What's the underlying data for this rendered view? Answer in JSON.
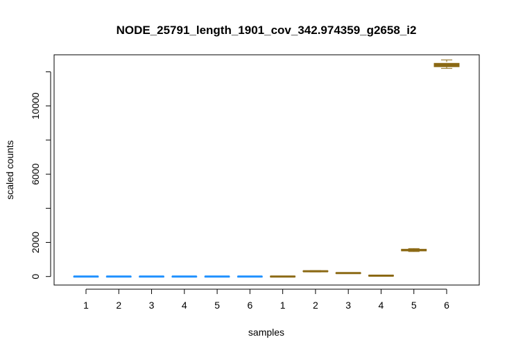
{
  "chart_data": {
    "type": "boxplot",
    "title": "NODE_25791_length_1901_cov_342.974359_g2658_i2",
    "xlabel": "samples",
    "ylabel": "scaled counts",
    "ylim": [
      -500,
      13000
    ],
    "y_ticks": [
      0,
      2000,
      6000,
      10000
    ],
    "y_minor_ticks": [
      4000,
      8000,
      12000
    ],
    "grid": false,
    "categories": [
      "1",
      "2",
      "3",
      "4",
      "5",
      "6",
      "1",
      "2",
      "3",
      "4",
      "5",
      "6"
    ],
    "series": [
      {
        "color": "#1E90FF",
        "boxes": [
          {
            "category": "1",
            "min": 0,
            "q1": 0,
            "median": 0,
            "q3": 0,
            "max": 0
          },
          {
            "category": "2",
            "min": 0,
            "q1": 0,
            "median": 0,
            "q3": 0,
            "max": 0
          },
          {
            "category": "3",
            "min": 0,
            "q1": 0,
            "median": 0,
            "q3": 0,
            "max": 0
          },
          {
            "category": "4",
            "min": 0,
            "q1": 0,
            "median": 0,
            "q3": 0,
            "max": 0
          },
          {
            "category": "5",
            "min": 0,
            "q1": 0,
            "median": 0,
            "q3": 0,
            "max": 0
          },
          {
            "category": "6",
            "min": 0,
            "q1": 0,
            "median": 0,
            "q3": 0,
            "max": 0
          }
        ]
      },
      {
        "color": "#8B6914",
        "boxes": [
          {
            "category": "1",
            "min": -30,
            "q1": -20,
            "median": 0,
            "q3": 20,
            "max": 30
          },
          {
            "category": "2",
            "min": 270,
            "q1": 290,
            "median": 310,
            "q3": 330,
            "max": 350
          },
          {
            "category": "3",
            "min": 170,
            "q1": 180,
            "median": 200,
            "q3": 220,
            "max": 230
          },
          {
            "category": "4",
            "min": 20,
            "q1": 30,
            "median": 50,
            "q3": 70,
            "max": 80
          },
          {
            "category": "5",
            "min": 1460,
            "q1": 1500,
            "median": 1550,
            "q3": 1600,
            "max": 1640
          },
          {
            "category": "6",
            "min": 12200,
            "q1": 12300,
            "median": 12400,
            "q3": 12500,
            "max": 12700
          }
        ]
      }
    ]
  }
}
